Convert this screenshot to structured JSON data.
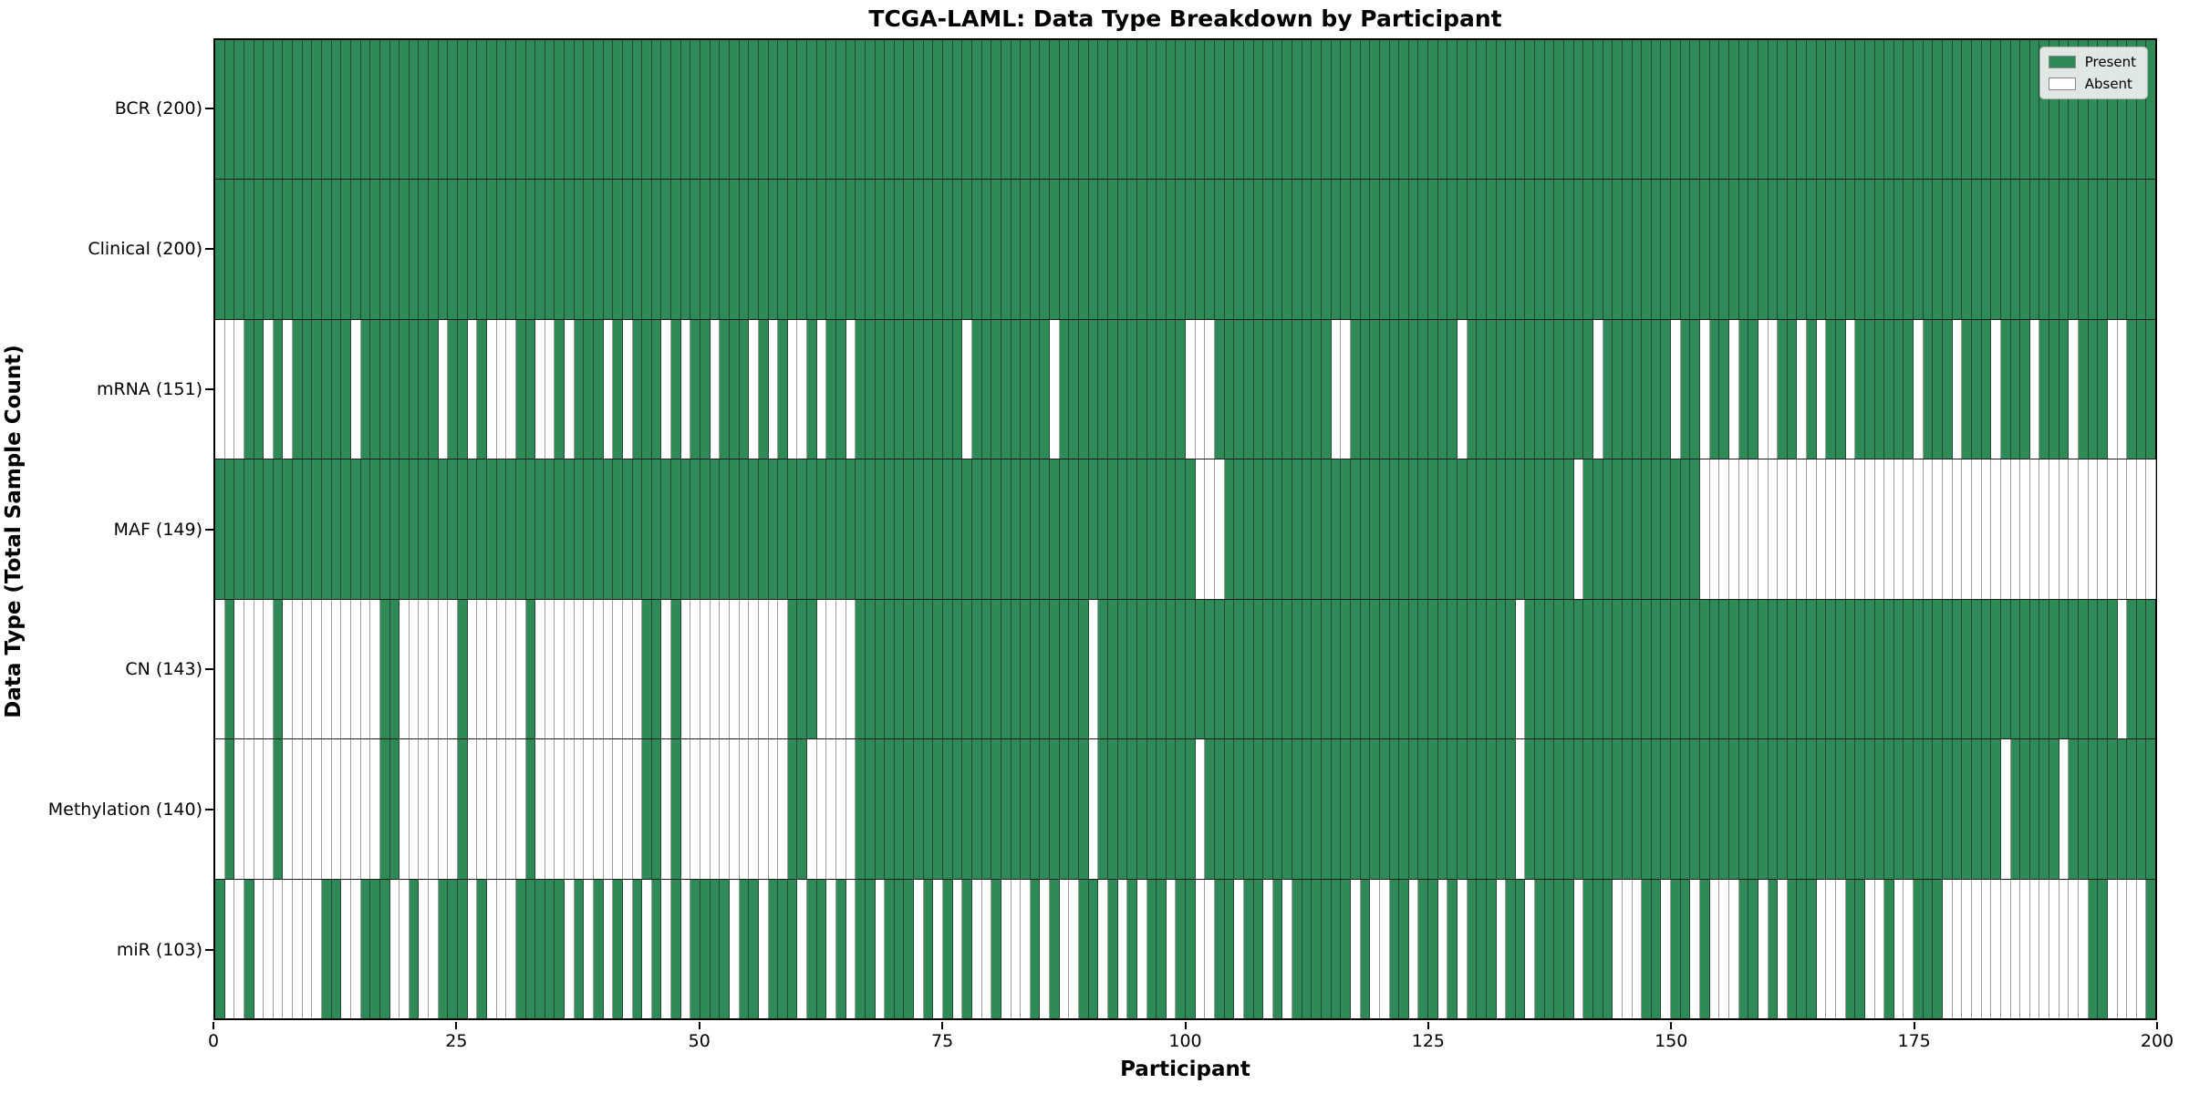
{
  "title": "TCGA-LAML: Data Type Breakdown by Participant",
  "axes": {
    "x_label": "Participant",
    "y_label": "Data Type (Total Sample Count)"
  },
  "legend": {
    "items": [
      {
        "label": "Present",
        "color": "#2e8b57"
      },
      {
        "label": "Absent",
        "color": "#ffffff"
      }
    ]
  },
  "colors": {
    "present": "#2e8b57",
    "absent": "#ffffff",
    "cell_edge": "rgba(20,20,20,0.55)",
    "row_separator": "#1a1a1a",
    "legend_background": "#f0f0f0"
  },
  "chart_data": {
    "type": "heatmap",
    "title": "TCGA-LAML: Data Type Breakdown by Participant",
    "xlabel": "Participant",
    "ylabel": "Data Type (Total Sample Count)",
    "x_range": [
      0,
      200
    ],
    "x_ticks": [
      0,
      25,
      50,
      75,
      100,
      125,
      150,
      175,
      200
    ],
    "n_participants": 200,
    "legend_entries": [
      "Present",
      "Absent"
    ],
    "value_encoding": {
      "present": 1,
      "absent": 0
    },
    "rows": [
      {
        "label": "BCR (200)",
        "name": "BCR",
        "present_count": 200,
        "absent_indices": []
      },
      {
        "label": "Clinical (200)",
        "name": "Clinical",
        "present_count": 200,
        "absent_indices": []
      },
      {
        "label": "mRNA (151)",
        "name": "mRNA",
        "present_count": 151,
        "absent_indices": [
          0,
          1,
          2,
          5,
          7,
          14,
          23,
          26,
          28,
          29,
          30,
          33,
          34,
          36,
          40,
          42,
          46,
          48,
          51,
          55,
          57,
          59,
          60,
          62,
          65,
          77,
          86,
          100,
          101,
          102,
          115,
          116,
          128,
          142,
          150,
          153,
          156,
          159,
          160,
          163,
          165,
          168,
          175,
          179,
          183,
          187,
          191,
          195,
          196
        ]
      },
      {
        "label": "MAF (149)",
        "name": "MAF",
        "present_count": 149,
        "absent_indices": [
          101,
          102,
          103,
          140,
          153,
          154,
          155,
          156,
          157,
          158,
          159,
          160,
          161,
          162,
          163,
          164,
          165,
          166,
          167,
          168,
          169,
          170,
          171,
          172,
          173,
          174,
          175,
          176,
          177,
          178,
          179,
          180,
          181,
          182,
          183,
          184,
          185,
          186,
          187,
          188,
          189,
          190,
          191,
          192,
          193,
          194,
          195,
          196,
          197,
          198,
          199
        ]
      },
      {
        "label": "CN (143)",
        "name": "CN",
        "present_count": 143,
        "absent_indices": [
          0,
          2,
          3,
          4,
          5,
          7,
          8,
          9,
          10,
          11,
          12,
          13,
          14,
          15,
          16,
          19,
          20,
          21,
          22,
          23,
          24,
          26,
          27,
          28,
          29,
          30,
          31,
          33,
          34,
          35,
          36,
          37,
          38,
          39,
          40,
          41,
          42,
          43,
          46,
          48,
          49,
          50,
          51,
          52,
          53,
          54,
          55,
          56,
          57,
          58,
          62,
          63,
          64,
          65,
          90,
          134,
          196
        ]
      },
      {
        "label": "Methylation (140)",
        "name": "Methylation",
        "present_count": 140,
        "absent_indices": [
          0,
          2,
          3,
          4,
          5,
          7,
          8,
          9,
          10,
          11,
          12,
          13,
          14,
          15,
          16,
          19,
          20,
          21,
          22,
          23,
          24,
          26,
          27,
          28,
          29,
          30,
          31,
          33,
          34,
          35,
          36,
          37,
          38,
          39,
          40,
          41,
          42,
          43,
          46,
          48,
          49,
          50,
          51,
          52,
          53,
          54,
          55,
          56,
          57,
          58,
          61,
          62,
          63,
          64,
          65,
          90,
          101,
          134,
          184,
          190
        ]
      },
      {
        "label": "miR (103)",
        "name": "miR",
        "present_count": 103,
        "absent_indices": [
          1,
          2,
          4,
          5,
          6,
          7,
          8,
          9,
          10,
          13,
          14,
          18,
          19,
          21,
          22,
          26,
          28,
          29,
          30,
          36,
          38,
          40,
          42,
          44,
          46,
          48,
          53,
          56,
          60,
          63,
          65,
          68,
          72,
          74,
          76,
          78,
          79,
          81,
          82,
          83,
          85,
          87,
          88,
          91,
          93,
          95,
          98,
          101,
          102,
          105,
          108,
          110,
          117,
          119,
          120,
          123,
          126,
          128,
          132,
          135,
          140,
          144,
          145,
          146,
          149,
          152,
          154,
          155,
          156,
          159,
          161,
          165,
          166,
          167,
          170,
          171,
          173,
          174,
          178,
          179,
          180,
          181,
          182,
          183,
          184,
          185,
          186,
          187,
          188,
          189,
          190,
          191,
          192,
          195,
          196,
          197,
          198
        ]
      }
    ]
  }
}
